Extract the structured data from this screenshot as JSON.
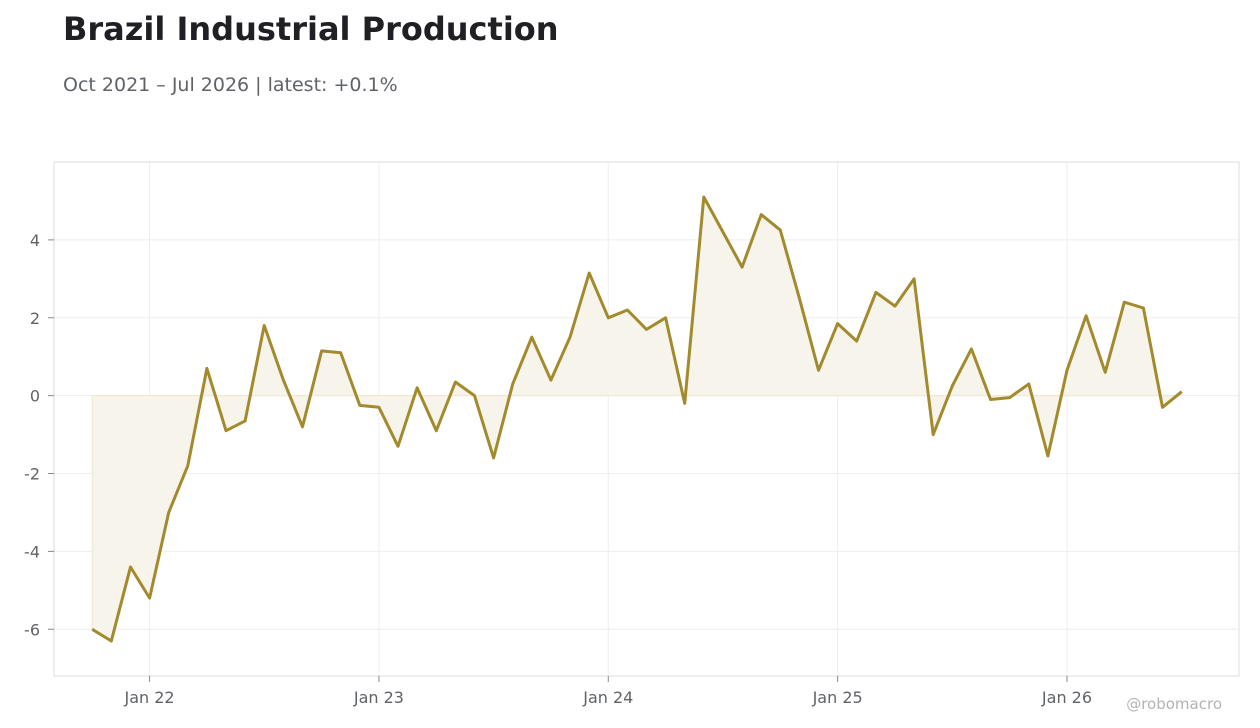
{
  "header": {
    "title": "Brazil Industrial Production",
    "subtitle": "Oct 2021 – Jul 2026 | latest: +0.1%"
  },
  "credit": "@robomacro",
  "colors": {
    "line": "#a38a2d",
    "fill": "#f7f4ec",
    "grid": "#eeeeee",
    "frame": "#dddddd"
  },
  "chart_data": {
    "type": "area",
    "title": "Brazil Industrial Production",
    "subtitle": "Oct 2021 – Jul 2026 | latest: +0.1%",
    "xlabel": "",
    "ylabel": "",
    "grid": true,
    "xlim": [
      "2021-08",
      "2026-10"
    ],
    "ylim": [
      -7.2,
      6
    ],
    "x_ticks": [
      {
        "date": "2022-01",
        "label": "Jan 22"
      },
      {
        "date": "2023-01",
        "label": "Jan 23"
      },
      {
        "date": "2024-01",
        "label": "Jan 24"
      },
      {
        "date": "2025-01",
        "label": "Jan 25"
      },
      {
        "date": "2026-01",
        "label": "Jan 26"
      }
    ],
    "y_ticks": [
      4,
      2,
      0,
      -2,
      -4,
      -6
    ],
    "series": [
      {
        "x": [
          "2021-10",
          "2021-11",
          "2021-12",
          "2022-01",
          "2022-02",
          "2022-03",
          "2022-04",
          "2022-05",
          "2022-06",
          "2022-07",
          "2022-08",
          "2022-09",
          "2022-10",
          "2022-11",
          "2022-12",
          "2023-01",
          "2023-02",
          "2023-03",
          "2023-04",
          "2023-05",
          "2023-06",
          "2023-07",
          "2023-08",
          "2023-09",
          "2023-10",
          "2023-11",
          "2023-12",
          "2024-01",
          "2024-02",
          "2024-03",
          "2024-04",
          "2024-05",
          "2024-06",
          "2024-07",
          "2024-08",
          "2024-09",
          "2024-10",
          "2024-11",
          "2024-12",
          "2025-01",
          "2025-02",
          "2025-03",
          "2025-04",
          "2025-05",
          "2025-06",
          "2025-07",
          "2025-08",
          "2025-09",
          "2025-10",
          "2025-11",
          "2025-12",
          "2026-01",
          "2026-02",
          "2026-03",
          "2026-04",
          "2026-05",
          "2026-06",
          "2026-07"
        ],
        "values": [
          -6.0,
          -6.3,
          -4.4,
          -5.2,
          -3.0,
          -1.8,
          0.7,
          -0.9,
          -0.65,
          1.8,
          0.4,
          -0.8,
          1.15,
          1.1,
          -0.25,
          -0.3,
          -1.3,
          0.2,
          -0.9,
          0.35,
          0.0,
          -1.6,
          0.3,
          1.5,
          0.4,
          1.5,
          3.15,
          2.0,
          2.2,
          1.7,
          2.0,
          -0.2,
          5.1,
          4.2,
          3.3,
          4.65,
          4.25,
          2.5,
          0.65,
          1.85,
          1.4,
          2.65,
          2.3,
          3.0,
          -1.0,
          0.25,
          1.2,
          -0.1,
          -0.05,
          0.3,
          -1.55,
          0.65,
          2.05,
          0.6,
          2.4,
          2.25,
          -0.3,
          0.1
        ]
      }
    ]
  }
}
